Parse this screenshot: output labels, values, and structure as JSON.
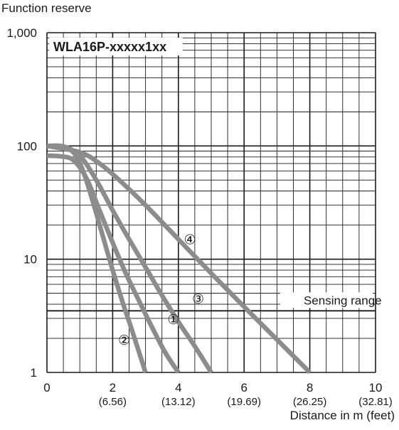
{
  "chart_data": {
    "type": "line",
    "title": "WLA16P-xxxxx1xx",
    "ylabel": "Function reserve",
    "xlabel": "Distance in m (feet)",
    "x_scale": "linear",
    "y_scale": "log",
    "xlim": [
      0,
      10
    ],
    "ylim": [
      1,
      1000
    ],
    "grid": true,
    "x_ticks": [
      {
        "value": 0,
        "label": "0",
        "sub": ""
      },
      {
        "value": 2,
        "label": "2",
        "sub": "(6.56)"
      },
      {
        "value": 4,
        "label": "4",
        "sub": "(13.12)"
      },
      {
        "value": 6,
        "label": "6",
        "sub": "(19.69)"
      },
      {
        "value": 8,
        "label": "8",
        "sub": "(26.25)"
      },
      {
        "value": 10,
        "label": "10",
        "sub": "(32.81)"
      }
    ],
    "y_ticks": [
      {
        "value": 1,
        "label": "1"
      },
      {
        "value": 10,
        "label": "10"
      },
      {
        "value": 100,
        "label": "100"
      },
      {
        "value": 1000,
        "label": "1,000"
      }
    ],
    "reference_line": {
      "y": 3.5,
      "label": "Sensing range"
    },
    "series": [
      {
        "name": "①",
        "x": [
          0,
          0.4,
          0.8,
          1.2,
          1.6,
          2.0,
          2.4,
          2.8,
          3.2,
          3.6,
          4.0
        ],
        "y": [
          82,
          81,
          75,
          52,
          27,
          14,
          7.5,
          4.3,
          2.5,
          1.5,
          1.0
        ],
        "label_at": [
          3.85,
          2.95
        ]
      },
      {
        "name": "②",
        "x": [
          0,
          0.4,
          0.8,
          1.1,
          1.4,
          1.7,
          2.0,
          2.3,
          2.6,
          3.0
        ],
        "y": [
          100,
          99,
          88,
          60,
          32,
          16,
          8,
          4.2,
          2.3,
          1.0
        ],
        "label_at": [
          2.35,
          1.95
        ]
      },
      {
        "name": "③",
        "x": [
          0,
          0.5,
          1.0,
          1.5,
          2.0,
          2.5,
          3.0,
          3.5,
          4.0,
          4.5,
          5.0
        ],
        "y": [
          100,
          99,
          82,
          50,
          27,
          15,
          8.5,
          4.8,
          2.8,
          1.7,
          1.0
        ],
        "label_at": [
          4.6,
          4.5
        ]
      },
      {
        "name": "④",
        "x": [
          0,
          1.0,
          1.6,
          2.2,
          3.0,
          4.0,
          5.0,
          6.0,
          7.0,
          8.0
        ],
        "y": [
          100,
          88,
          70,
          50,
          30,
          15,
          7.5,
          3.8,
          1.95,
          1.0
        ],
        "label_at": [
          4.35,
          15
        ]
      }
    ],
    "series_color": "#8c8c8c"
  }
}
